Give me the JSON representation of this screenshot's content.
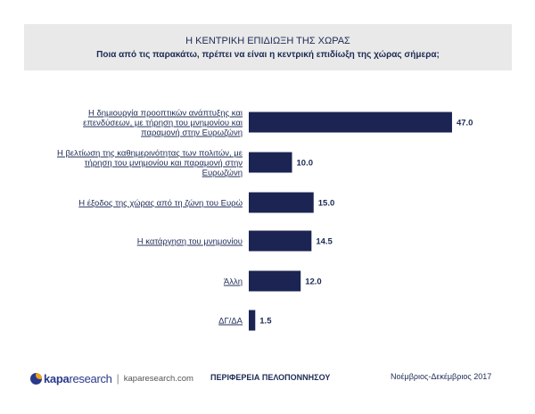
{
  "header": {
    "title": "Η ΚΕΝΤΡΙΚΗ ΕΠΙΔΙΩΞΗ ΤΗΣ ΧΩΡΑΣ",
    "subtitle": "Ποια από τις παρακάτω, πρέπει να είναι η κεντρική επιδίωξη της χώρας σήμερα;"
  },
  "chart_data": {
    "type": "bar",
    "orientation": "horizontal",
    "categories": [
      [
        "Η δημιουργία προοπτικών ανάπτυξης και",
        "επενδύσεων, με τήρηση του μνημονίου και",
        "παραμονή στην Ευρωζώνη"
      ],
      [
        "Η βελτίωση της καθημερινότητας των πολιτών, με",
        "τήρηση του μνημονίου και παραμονή στην",
        "Ευρωζώνη"
      ],
      [
        "Η έξοδος της χώρας από τη ζώνη του Ευρώ"
      ],
      [
        "Η κατάργηση του μνημονίου"
      ],
      [
        "Άλλη"
      ],
      [
        "ΔΓ/ΔΑ"
      ]
    ],
    "values": [
      47.0,
      10.0,
      15.0,
      14.5,
      12.0,
      1.5
    ],
    "value_labels": [
      "47.0",
      "10.0",
      "15.0",
      "14.5",
      "12.0",
      "1.5"
    ],
    "bar_color": "#1b2452",
    "xlim": [
      0,
      50
    ],
    "grid": false,
    "legend": "none"
  },
  "footer": {
    "brand_kapa": "kapa",
    "brand_research": "research",
    "separator": "|",
    "url": "kaparesearch.com",
    "region": "ΠΕΡΙΦΕΡΕΙΑ ΠΕΛΟΠΟΝΝΗΣΟΥ",
    "date": "Νοέμβριος-Δεκέμβριος 2017"
  }
}
